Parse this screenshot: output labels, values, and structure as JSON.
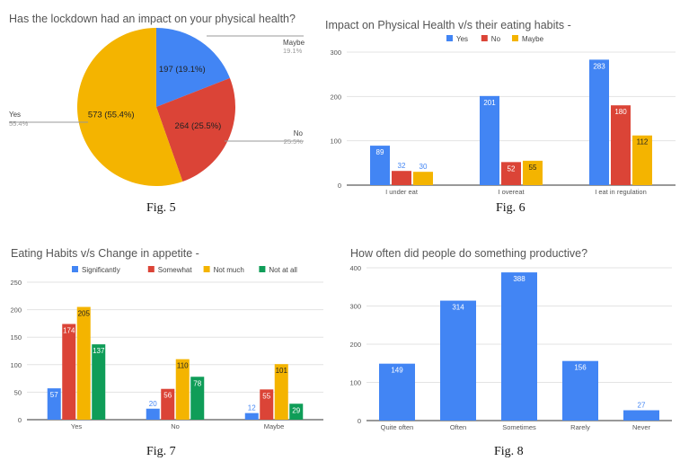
{
  "captions": [
    "Fig. 5",
    "Fig. 6",
    "Fig. 7",
    "Fig. 8"
  ],
  "colors": {
    "blue": "#4285f4",
    "red": "#db4437",
    "yellow": "#f4b400",
    "green": "#0f9d58",
    "grid": "#e3e3e3",
    "axis": "#333333"
  },
  "chart_data": [
    {
      "type": "pie",
      "title": "Has the lockdown had an impact on your physical health?",
      "slices": [
        {
          "label": "Maybe",
          "value": 197,
          "percent": "19.1%",
          "slice_label": "197 (19.1%)",
          "color": "#4285f4"
        },
        {
          "label": "No",
          "value": 264,
          "percent": "25.5%",
          "slice_label": "264 (25.5%)",
          "color": "#db4437"
        },
        {
          "label": "Yes",
          "value": 573,
          "percent": "55.4%",
          "slice_label": "573 (55.4%)",
          "color": "#f4b400"
        }
      ]
    },
    {
      "type": "bar",
      "title": "Impact on Physical Health v/s their eating habits -",
      "categories": [
        "I under eat",
        "I overeat",
        "I eat in regulation"
      ],
      "series": [
        {
          "name": "Yes",
          "color": "#4285f4",
          "values": [
            89,
            201,
            283
          ]
        },
        {
          "name": "No",
          "color": "#db4437",
          "values": [
            32,
            52,
            180
          ]
        },
        {
          "name": "Maybe",
          "color": "#f4b400",
          "values": [
            30,
            55,
            112
          ]
        }
      ],
      "yticks": [
        0,
        100,
        200,
        300
      ],
      "ylim": [
        0,
        300
      ],
      "legend": "top",
      "grid": true
    },
    {
      "type": "bar",
      "title": "Eating Habits v/s Change in appetite -",
      "categories": [
        "Yes",
        "No",
        "Maybe"
      ],
      "series": [
        {
          "name": "Significantly",
          "color": "#4285f4",
          "values": [
            57,
            20,
            12
          ]
        },
        {
          "name": "Somewhat",
          "color": "#db4437",
          "values": [
            174,
            56,
            55
          ]
        },
        {
          "name": "Not much",
          "color": "#f4b400",
          "values": [
            205,
            110,
            101
          ]
        },
        {
          "name": "Not at all",
          "color": "#0f9d58",
          "values": [
            137,
            78,
            29
          ]
        }
      ],
      "yticks": [
        0,
        50,
        100,
        150,
        200,
        250
      ],
      "ylim": [
        0,
        250
      ],
      "legend": "top",
      "grid": true
    },
    {
      "type": "bar",
      "title": "How often did people do something productive?",
      "categories": [
        "Quite often",
        "Often",
        "Sometimes",
        "Rarely",
        "Never"
      ],
      "series": [
        {
          "color": "#4285f4",
          "values": [
            149,
            314,
            388,
            156,
            27
          ]
        }
      ],
      "yticks": [
        0,
        100,
        200,
        300,
        400
      ],
      "ylim": [
        0,
        400
      ],
      "grid": true
    }
  ]
}
